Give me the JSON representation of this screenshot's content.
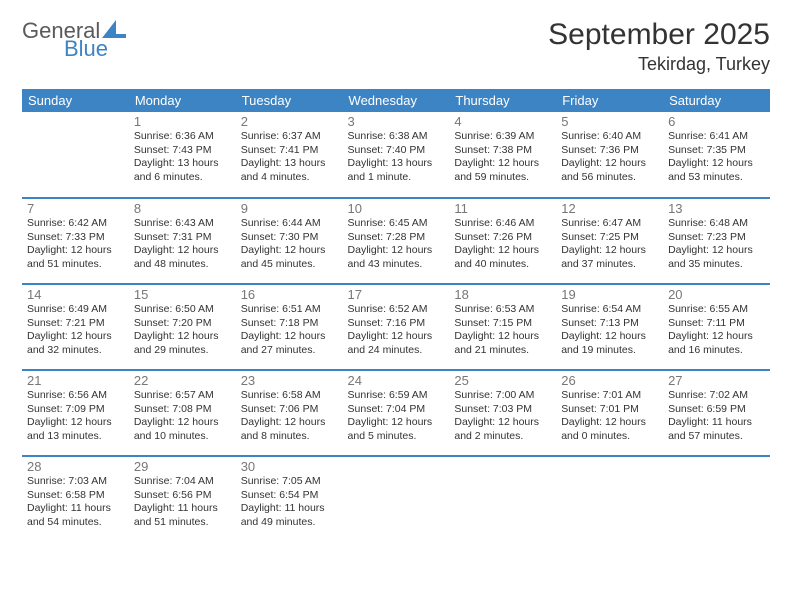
{
  "logo": {
    "word1": "General",
    "word2": "Blue"
  },
  "title": {
    "month": "September 2025",
    "location": "Tekirdag, Turkey"
  },
  "colors": {
    "header_bg": "#3d84c4",
    "header_text": "#ffffff",
    "divider": "#3d84c4",
    "day_num": "#777777",
    "body_text": "#333333"
  },
  "weekdays": [
    "Sunday",
    "Monday",
    "Tuesday",
    "Wednesday",
    "Thursday",
    "Friday",
    "Saturday"
  ],
  "weeks": [
    [
      null,
      {
        "n": "1",
        "sr": "Sunrise: 6:36 AM",
        "ss": "Sunset: 7:43 PM",
        "dl": "Daylight: 13 hours and 6 minutes."
      },
      {
        "n": "2",
        "sr": "Sunrise: 6:37 AM",
        "ss": "Sunset: 7:41 PM",
        "dl": "Daylight: 13 hours and 4 minutes."
      },
      {
        "n": "3",
        "sr": "Sunrise: 6:38 AM",
        "ss": "Sunset: 7:40 PM",
        "dl": "Daylight: 13 hours and 1 minute."
      },
      {
        "n": "4",
        "sr": "Sunrise: 6:39 AM",
        "ss": "Sunset: 7:38 PM",
        "dl": "Daylight: 12 hours and 59 minutes."
      },
      {
        "n": "5",
        "sr": "Sunrise: 6:40 AM",
        "ss": "Sunset: 7:36 PM",
        "dl": "Daylight: 12 hours and 56 minutes."
      },
      {
        "n": "6",
        "sr": "Sunrise: 6:41 AM",
        "ss": "Sunset: 7:35 PM",
        "dl": "Daylight: 12 hours and 53 minutes."
      }
    ],
    [
      {
        "n": "7",
        "sr": "Sunrise: 6:42 AM",
        "ss": "Sunset: 7:33 PM",
        "dl": "Daylight: 12 hours and 51 minutes."
      },
      {
        "n": "8",
        "sr": "Sunrise: 6:43 AM",
        "ss": "Sunset: 7:31 PM",
        "dl": "Daylight: 12 hours and 48 minutes."
      },
      {
        "n": "9",
        "sr": "Sunrise: 6:44 AM",
        "ss": "Sunset: 7:30 PM",
        "dl": "Daylight: 12 hours and 45 minutes."
      },
      {
        "n": "10",
        "sr": "Sunrise: 6:45 AM",
        "ss": "Sunset: 7:28 PM",
        "dl": "Daylight: 12 hours and 43 minutes."
      },
      {
        "n": "11",
        "sr": "Sunrise: 6:46 AM",
        "ss": "Sunset: 7:26 PM",
        "dl": "Daylight: 12 hours and 40 minutes."
      },
      {
        "n": "12",
        "sr": "Sunrise: 6:47 AM",
        "ss": "Sunset: 7:25 PM",
        "dl": "Daylight: 12 hours and 37 minutes."
      },
      {
        "n": "13",
        "sr": "Sunrise: 6:48 AM",
        "ss": "Sunset: 7:23 PM",
        "dl": "Daylight: 12 hours and 35 minutes."
      }
    ],
    [
      {
        "n": "14",
        "sr": "Sunrise: 6:49 AM",
        "ss": "Sunset: 7:21 PM",
        "dl": "Daylight: 12 hours and 32 minutes."
      },
      {
        "n": "15",
        "sr": "Sunrise: 6:50 AM",
        "ss": "Sunset: 7:20 PM",
        "dl": "Daylight: 12 hours and 29 minutes."
      },
      {
        "n": "16",
        "sr": "Sunrise: 6:51 AM",
        "ss": "Sunset: 7:18 PM",
        "dl": "Daylight: 12 hours and 27 minutes."
      },
      {
        "n": "17",
        "sr": "Sunrise: 6:52 AM",
        "ss": "Sunset: 7:16 PM",
        "dl": "Daylight: 12 hours and 24 minutes."
      },
      {
        "n": "18",
        "sr": "Sunrise: 6:53 AM",
        "ss": "Sunset: 7:15 PM",
        "dl": "Daylight: 12 hours and 21 minutes."
      },
      {
        "n": "19",
        "sr": "Sunrise: 6:54 AM",
        "ss": "Sunset: 7:13 PM",
        "dl": "Daylight: 12 hours and 19 minutes."
      },
      {
        "n": "20",
        "sr": "Sunrise: 6:55 AM",
        "ss": "Sunset: 7:11 PM",
        "dl": "Daylight: 12 hours and 16 minutes."
      }
    ],
    [
      {
        "n": "21",
        "sr": "Sunrise: 6:56 AM",
        "ss": "Sunset: 7:09 PM",
        "dl": "Daylight: 12 hours and 13 minutes."
      },
      {
        "n": "22",
        "sr": "Sunrise: 6:57 AM",
        "ss": "Sunset: 7:08 PM",
        "dl": "Daylight: 12 hours and 10 minutes."
      },
      {
        "n": "23",
        "sr": "Sunrise: 6:58 AM",
        "ss": "Sunset: 7:06 PM",
        "dl": "Daylight: 12 hours and 8 minutes."
      },
      {
        "n": "24",
        "sr": "Sunrise: 6:59 AM",
        "ss": "Sunset: 7:04 PM",
        "dl": "Daylight: 12 hours and 5 minutes."
      },
      {
        "n": "25",
        "sr": "Sunrise: 7:00 AM",
        "ss": "Sunset: 7:03 PM",
        "dl": "Daylight: 12 hours and 2 minutes."
      },
      {
        "n": "26",
        "sr": "Sunrise: 7:01 AM",
        "ss": "Sunset: 7:01 PM",
        "dl": "Daylight: 12 hours and 0 minutes."
      },
      {
        "n": "27",
        "sr": "Sunrise: 7:02 AM",
        "ss": "Sunset: 6:59 PM",
        "dl": "Daylight: 11 hours and 57 minutes."
      }
    ],
    [
      {
        "n": "28",
        "sr": "Sunrise: 7:03 AM",
        "ss": "Sunset: 6:58 PM",
        "dl": "Daylight: 11 hours and 54 minutes."
      },
      {
        "n": "29",
        "sr": "Sunrise: 7:04 AM",
        "ss": "Sunset: 6:56 PM",
        "dl": "Daylight: 11 hours and 51 minutes."
      },
      {
        "n": "30",
        "sr": "Sunrise: 7:05 AM",
        "ss": "Sunset: 6:54 PM",
        "dl": "Daylight: 11 hours and 49 minutes."
      },
      null,
      null,
      null,
      null
    ]
  ]
}
